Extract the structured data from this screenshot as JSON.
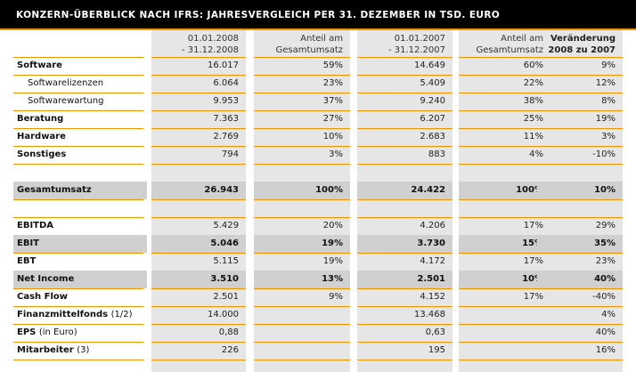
{
  "title": "KONZERN-ÜBERBLICK NACH IFRS: JAHRESVERGLEICH PER 31. DEZEMBER IN TSD. EURO",
  "colors": {
    "accent": "#f29400",
    "title_bg": "#000000",
    "column_bg": "#e6e6e6",
    "row_highlight": "#d0d0d0"
  },
  "headers": [
    {
      "l1": "01.01.2008",
      "l2": "- 31.12.2008",
      "bold": false
    },
    {
      "l1": "Anteil am",
      "l2": "Gesamtumsatz",
      "bold": false
    },
    {
      "l1": "01.01.2007",
      "l2": "- 31.12.2007",
      "bold": false
    },
    {
      "l1": "Anteil am",
      "l2": "Gesamtumsatz",
      "bold": false
    },
    {
      "l1": "Veränderung",
      "l2": "2008 zu 2007",
      "bold": true
    }
  ],
  "rows": [
    {
      "label": "Software",
      "note": "",
      "sub": false,
      "bold": false,
      "shade": false,
      "values": [
        "16.017",
        "59%",
        "14.649",
        "60%",
        "9%"
      ]
    },
    {
      "label": "Softwarelizenzen",
      "note": "",
      "sub": true,
      "bold": false,
      "shade": false,
      "values": [
        "6.064",
        "23%",
        "5.409",
        "22%",
        "12%"
      ]
    },
    {
      "label": "Softwarewartung",
      "note": "",
      "sub": true,
      "bold": false,
      "shade": false,
      "values": [
        "9.953",
        "37%",
        "9.240",
        "38%",
        "8%"
      ]
    },
    {
      "label": "Beratung",
      "note": "",
      "sub": false,
      "bold": false,
      "shade": false,
      "values": [
        "7.363",
        "27%",
        "6.207",
        "25%",
        "19%"
      ]
    },
    {
      "label": "Hardware",
      "note": "",
      "sub": false,
      "bold": false,
      "shade": false,
      "values": [
        "2.769",
        "10%",
        "2.683",
        "11%",
        "3%"
      ]
    },
    {
      "label": "Sonstiges",
      "note": "",
      "sub": false,
      "bold": false,
      "shade": false,
      "values": [
        "794",
        "3%",
        "883",
        "4%",
        "-10%"
      ]
    },
    {
      "blank": true
    },
    {
      "label": "Gesamtumsatz",
      "note": "",
      "sub": false,
      "bold": true,
      "shade": true,
      "values": [
        "26.943",
        "100%",
        "24.422",
        "100%",
        "10%"
      ]
    },
    {
      "blank": true
    },
    {
      "label": "EBITDA",
      "note": "",
      "sub": false,
      "bold": false,
      "shade": false,
      "values": [
        "5.429",
        "20%",
        "4.206",
        "17%",
        "29%"
      ]
    },
    {
      "label": "EBIT",
      "note": "",
      "sub": false,
      "bold": true,
      "shade": true,
      "values": [
        "5.046",
        "19%",
        "3.730",
        "15%",
        "35%"
      ]
    },
    {
      "label": "EBT",
      "note": "",
      "sub": false,
      "bold": false,
      "shade": false,
      "values": [
        "5.115",
        "19%",
        "4.172",
        "17%",
        "23%"
      ]
    },
    {
      "label": "Net Income",
      "note": "",
      "sub": false,
      "bold": true,
      "shade": true,
      "values": [
        "3.510",
        "13%",
        "2.501",
        "10%",
        "40%"
      ]
    },
    {
      "label": "Cash Flow",
      "note": "",
      "sub": false,
      "bold": false,
      "shade": false,
      "values": [
        "2.501",
        "9%",
        "4.152",
        "17%",
        "-40%"
      ]
    },
    {
      "label": "Finanzmittelfonds",
      "note": "(1/2)",
      "sub": false,
      "bold": false,
      "shade": false,
      "values": [
        "14.000",
        "",
        "13.468",
        "",
        "4%"
      ]
    },
    {
      "label": "EPS",
      "note": "(in Euro)",
      "sub": false,
      "bold": false,
      "shade": false,
      "values": [
        "0,88",
        "",
        "0,63",
        "",
        "40%"
      ]
    },
    {
      "label": "Mitarbeiter",
      "note": "(3)",
      "sub": false,
      "bold": false,
      "shade": false,
      "values": [
        "226",
        "",
        "195",
        "",
        "16%"
      ]
    }
  ]
}
